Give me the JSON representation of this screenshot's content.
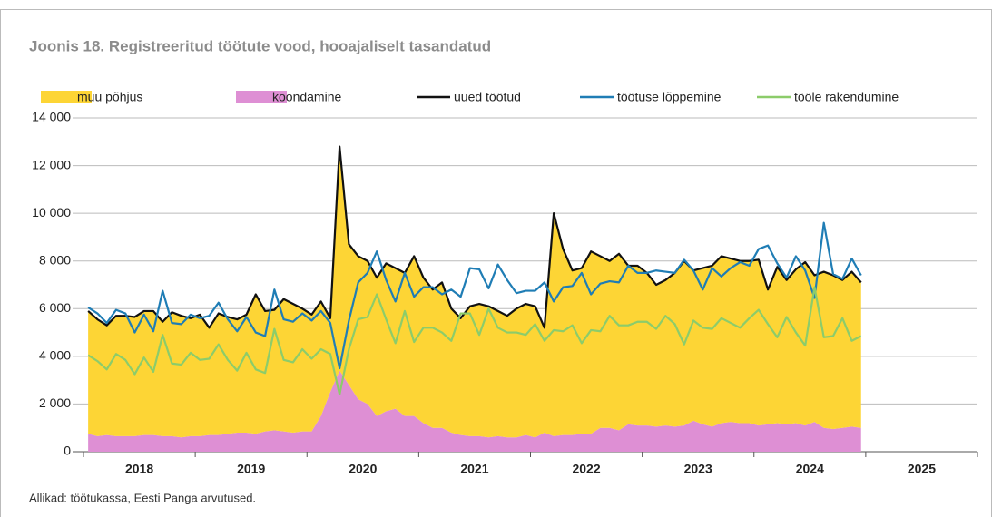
{
  "chart_data": {
    "type": "combo",
    "title": "Joonis 18. Registreeritud töötute vood, hooajaliselt tasandatud",
    "source": "Allikad: töötukassa, Eesti Panga arvutused.",
    "categories": [
      null,
      null,
      null,
      null,
      null,
      null,
      "2018",
      null,
      null,
      null,
      null,
      null,
      null,
      null,
      null,
      null,
      null,
      null,
      "2019",
      null,
      null,
      null,
      null,
      null,
      null,
      null,
      null,
      null,
      null,
      null,
      "2020",
      null,
      null,
      null,
      null,
      null,
      null,
      null,
      null,
      null,
      null,
      null,
      "2021",
      null,
      null,
      null,
      null,
      null,
      null,
      null,
      null,
      null,
      null,
      null,
      "2022",
      null,
      null,
      null,
      null,
      null,
      null,
      null,
      null,
      null,
      null,
      null,
      "2023",
      null,
      null,
      null,
      null,
      null,
      null,
      null,
      null,
      null,
      null,
      null,
      "2024",
      null,
      null,
      null,
      null,
      null,
      null,
      null,
      null,
      null,
      null,
      null,
      "2025",
      null,
      null,
      null,
      null,
      null
    ],
    "ylim": [
      0,
      14000
    ],
    "yticks": [
      0,
      {
        "value": 2000,
        "label": "2 000"
      },
      {
        "value": 4000,
        "label": "4 000"
      },
      {
        "value": 6000,
        "label": "6 000"
      },
      {
        "value": 8000,
        "label": "8 000"
      },
      {
        "value": 10000,
        "label": "10 000"
      },
      {
        "value": 12000,
        "label": "12 000"
      },
      {
        "value": 14000,
        "label": "14 000"
      }
    ],
    "grid": true,
    "series": [
      {
        "name": "muu põhjus",
        "type": "area",
        "stack": true,
        "color": "#fdd535",
        "values": [
          5150,
          4900,
          4600,
          5050,
          5050,
          5000,
          5200,
          5200,
          4800,
          5200,
          5100,
          4950,
          5100,
          4500,
          5100,
          4900,
          4750,
          4950,
          5850,
          5050,
          5050,
          5550,
          5400,
          5150,
          4900,
          4800,
          3100,
          9400,
          5900,
          6000,
          6000,
          5800,
          6200,
          5900,
          6000,
          6700,
          6100,
          5800,
          6100,
          5200,
          4900,
          5450,
          5550,
          5500,
          5250,
          5100,
          5400,
          5500,
          5500,
          4400,
          9350,
          7800,
          6900,
          6950,
          7650,
          7200,
          7000,
          7400,
          6650,
          6700,
          6400,
          5950,
          6100,
          6450,
          6900,
          6300,
          6550,
          6750,
          7000,
          6850,
          6800,
          6800,
          6950,
          5650,
          6550,
          6050,
          6450,
          6850,
          6150,
          6550,
          6450,
          6200,
          6500,
          6100,
          null,
          null,
          null,
          null,
          null,
          null,
          null,
          null,
          null,
          null,
          null,
          null
        ]
      },
      {
        "name": "koondamine",
        "type": "area",
        "stack": true,
        "color": "#de8fd4",
        "values": [
          750,
          650,
          700,
          650,
          650,
          650,
          700,
          700,
          650,
          650,
          600,
          650,
          650,
          700,
          700,
          750,
          800,
          800,
          750,
          850,
          900,
          850,
          800,
          850,
          850,
          1500,
          2500,
          3400,
          2800,
          2200,
          2000,
          1500,
          1700,
          1800,
          1500,
          1500,
          1200,
          1000,
          1000,
          800,
          700,
          650,
          650,
          600,
          650,
          600,
          600,
          700,
          600,
          800,
          650,
          700,
          700,
          750,
          750,
          1000,
          1000,
          900,
          1150,
          1100,
          1100,
          1050,
          1100,
          1050,
          1100,
          1300,
          1150,
          1050,
          1200,
          1250,
          1200,
          1200,
          1100,
          1150,
          1200,
          1150,
          1200,
          1100,
          1250,
          1000,
          950,
          1000,
          1050,
          1000,
          null,
          null,
          null,
          null,
          null,
          null,
          null,
          null,
          null,
          null,
          null,
          null
        ]
      },
      {
        "name": "uued töötud",
        "type": "line",
        "color": "#111111",
        "values": [
          5900,
          5550,
          5300,
          5700,
          5700,
          5650,
          5900,
          5900,
          5450,
          5850,
          5700,
          5600,
          5750,
          5200,
          5800,
          5650,
          5550,
          5750,
          6600,
          5900,
          5950,
          6400,
          6200,
          6000,
          5750,
          6300,
          5600,
          12800,
          8700,
          8200,
          8000,
          7300,
          7900,
          7700,
          7500,
          8200,
          7300,
          6800,
          7100,
          6000,
          5600,
          6100,
          6200,
          6100,
          5900,
          5700,
          6000,
          6200,
          6100,
          5200,
          10000,
          8500,
          7600,
          7700,
          8400,
          8200,
          8000,
          8300,
          7800,
          7800,
          7500,
          7000,
          7200,
          7500,
          8000,
          7600,
          7700,
          7800,
          8200,
          8100,
          8000,
          8000,
          8050,
          6800,
          7750,
          7200,
          7650,
          7950,
          7400,
          7550,
          7400,
          7200,
          7550,
          7100,
          null,
          null,
          null,
          null,
          null,
          null,
          null,
          null,
          null,
          null,
          null,
          null
        ]
      },
      {
        "name": "töötuse lõppemine",
        "type": "line",
        "color": "#1f7db5",
        "values": [
          6050,
          5800,
          5400,
          5950,
          5800,
          5000,
          5750,
          5050,
          6750,
          5400,
          5350,
          5750,
          5600,
          5700,
          6250,
          5550,
          5050,
          5650,
          5000,
          4850,
          6800,
          5550,
          5450,
          5800,
          5500,
          5900,
          5400,
          3500,
          5500,
          7100,
          7500,
          8400,
          7200,
          6300,
          7500,
          6500,
          6900,
          6900,
          6600,
          6800,
          6500,
          7700,
          7650,
          6850,
          7850,
          7200,
          6650,
          6750,
          6750,
          7100,
          6300,
          6900,
          6950,
          7500,
          6600,
          7050,
          7150,
          7100,
          7800,
          7500,
          7500,
          7600,
          7550,
          7500,
          8050,
          7600,
          6800,
          7700,
          7350,
          7700,
          7950,
          7800,
          8500,
          8650,
          7900,
          7300,
          8200,
          7600,
          6450,
          9600,
          7450,
          7250,
          8100,
          7400,
          null,
          null,
          null,
          null,
          null,
          null,
          null,
          null,
          null,
          null,
          null,
          null
        ]
      },
      {
        "name": "tööle rakendumine",
        "type": "line",
        "color": "#8ccc6a",
        "values": [
          4050,
          3800,
          3450,
          4100,
          3850,
          3250,
          3950,
          3350,
          4900,
          3700,
          3650,
          4150,
          3850,
          3900,
          4500,
          3850,
          3400,
          4150,
          3450,
          3300,
          5150,
          3850,
          3750,
          4300,
          3900,
          4300,
          4100,
          2400,
          4300,
          5550,
          5650,
          6600,
          5550,
          4550,
          5900,
          4600,
          5200,
          5200,
          5000,
          4650,
          5800,
          5800,
          4900,
          6000,
          5200,
          5000,
          5000,
          4900,
          5350,
          4650,
          5100,
          5050,
          5300,
          4550,
          5100,
          5050,
          5700,
          5300,
          5300,
          5450,
          5450,
          5150,
          5700,
          5350,
          4500,
          5500,
          5200,
          5150,
          5600,
          5400,
          5200,
          5600,
          5950,
          5350,
          4800,
          5650,
          5000,
          4450,
          6900,
          4800,
          4850,
          5600,
          4650,
          4850,
          null,
          null,
          null,
          null,
          null,
          null,
          null,
          null,
          null,
          null,
          null,
          null
        ]
      }
    ]
  }
}
